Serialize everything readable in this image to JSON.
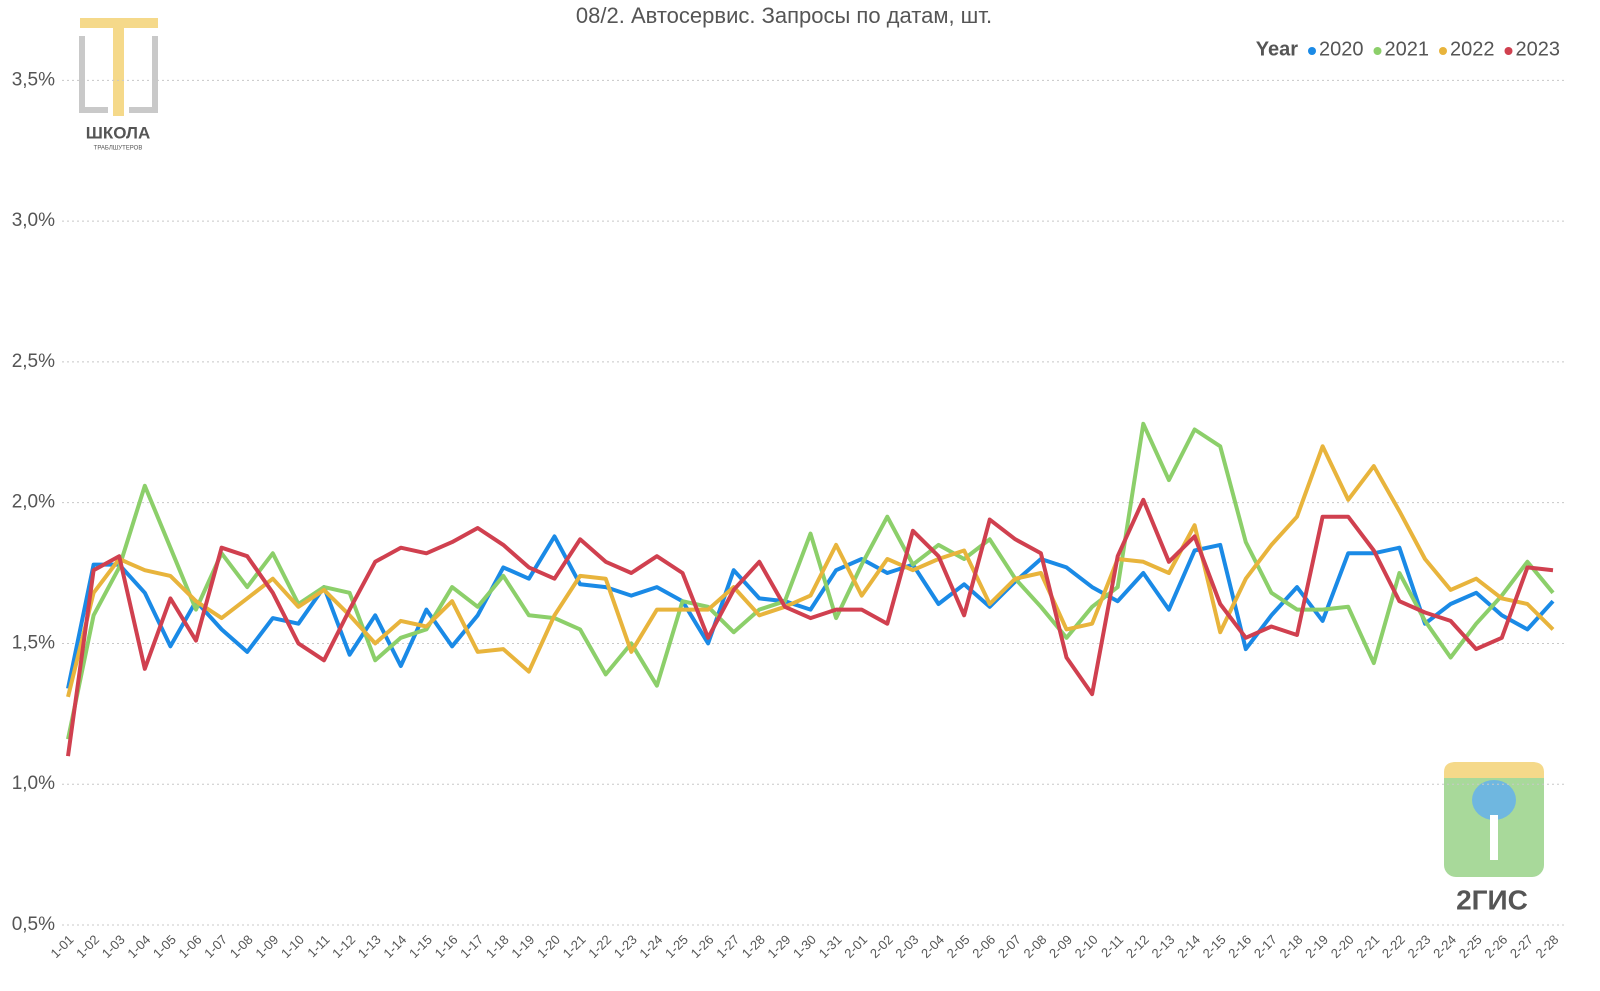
{
  "chart_data": {
    "type": "line",
    "title": "08/2. Автосервис. Запросы по датам, шт.",
    "legend_title": "Year",
    "legend_position": "top-right",
    "grid": true,
    "categories": [
      "1-01",
      "1-02",
      "1-03",
      "1-04",
      "1-05",
      "1-06",
      "1-07",
      "1-08",
      "1-09",
      "1-10",
      "1-11",
      "1-12",
      "1-13",
      "1-14",
      "1-15",
      "1-16",
      "1-17",
      "1-18",
      "1-19",
      "1-20",
      "1-21",
      "1-22",
      "1-23",
      "1-24",
      "1-25",
      "1-26",
      "1-27",
      "1-28",
      "1-29",
      "1-30",
      "1-31",
      "2-01",
      "2-02",
      "2-03",
      "2-04",
      "2-05",
      "2-06",
      "2-07",
      "2-08",
      "2-09",
      "2-10",
      "2-11",
      "2-12",
      "2-13",
      "2-14",
      "2-15",
      "2-16",
      "2-17",
      "2-18",
      "2-19",
      "2-20",
      "2-21",
      "2-22",
      "2-23",
      "2-24",
      "2-25",
      "2-26",
      "2-27",
      "2-28"
    ],
    "ylim": [
      0.5,
      3.7
    ],
    "yticks": [
      {
        "value": 0.5,
        "label": "0,5%"
      },
      {
        "value": 1.0,
        "label": "1,0%"
      },
      {
        "value": 1.5,
        "label": "1,5%"
      },
      {
        "value": 2.0,
        "label": "2,0%"
      },
      {
        "value": 2.5,
        "label": "2,5%"
      },
      {
        "value": 3.0,
        "label": "3,0%"
      },
      {
        "value": 3.5,
        "label": "3,5%"
      }
    ],
    "series": [
      {
        "name": "2020",
        "color": "#1a8ae6",
        "values": [
          1.34,
          1.78,
          1.78,
          1.68,
          1.49,
          1.65,
          1.55,
          1.47,
          1.59,
          1.57,
          1.7,
          1.46,
          1.6,
          1.42,
          1.62,
          1.49,
          1.6,
          1.77,
          1.73,
          1.88,
          1.71,
          1.7,
          1.67,
          1.7,
          1.65,
          1.5,
          1.76,
          1.66,
          1.65,
          1.62,
          1.76,
          1.8,
          1.75,
          1.78,
          1.64,
          1.71,
          1.63,
          1.72,
          1.8,
          1.77,
          1.7,
          1.65,
          1.75,
          1.62,
          1.83,
          1.85,
          1.48,
          1.6,
          1.7,
          1.58,
          1.82,
          1.82,
          1.84,
          1.57,
          1.64,
          1.68,
          1.6,
          1.55,
          1.65
        ]
      },
      {
        "name": "2021",
        "color": "#8ccf6a",
        "values": [
          1.16,
          1.6,
          1.77,
          2.06,
          1.84,
          1.62,
          1.82,
          1.7,
          1.82,
          1.64,
          1.7,
          1.68,
          1.44,
          1.52,
          1.55,
          1.7,
          1.63,
          1.74,
          1.6,
          1.59,
          1.55,
          1.39,
          1.5,
          1.35,
          1.65,
          1.63,
          1.54,
          1.62,
          1.65,
          1.89,
          1.59,
          1.78,
          1.95,
          1.78,
          1.85,
          1.8,
          1.87,
          1.73,
          1.63,
          1.52,
          1.63,
          1.7,
          2.28,
          2.08,
          2.26,
          2.2,
          1.86,
          1.68,
          1.62,
          1.62,
          1.63,
          1.43,
          1.75,
          1.58,
          1.45,
          1.57,
          1.67,
          1.79,
          1.68
        ]
      },
      {
        "name": "2022",
        "color": "#e8b43c",
        "values": [
          1.31,
          1.68,
          1.8,
          1.76,
          1.74,
          1.65,
          1.59,
          1.66,
          1.73,
          1.63,
          1.69,
          1.6,
          1.5,
          1.58,
          1.56,
          1.65,
          1.47,
          1.48,
          1.4,
          1.6,
          1.74,
          1.73,
          1.47,
          1.62,
          1.62,
          1.62,
          1.7,
          1.6,
          1.63,
          1.67,
          1.85,
          1.67,
          1.8,
          1.76,
          1.8,
          1.83,
          1.64,
          1.73,
          1.75,
          1.55,
          1.57,
          1.8,
          1.79,
          1.75,
          1.92,
          1.54,
          1.73,
          1.85,
          1.95,
          2.2,
          2.01,
          2.13,
          1.97,
          1.8,
          1.69,
          1.73,
          1.66,
          1.64,
          1.55
        ]
      },
      {
        "name": "2023",
        "color": "#d0404f",
        "values": [
          1.1,
          1.76,
          1.81,
          1.41,
          1.66,
          1.51,
          1.84,
          1.81,
          1.68,
          1.5,
          1.44,
          1.62,
          1.79,
          1.84,
          1.82,
          1.86,
          1.91,
          1.85,
          1.77,
          1.73,
          1.87,
          1.79,
          1.75,
          1.81,
          1.75,
          1.52,
          1.69,
          1.79,
          1.63,
          1.59,
          1.62,
          1.62,
          1.57,
          1.9,
          1.81,
          1.6,
          1.94,
          1.87,
          1.82,
          1.45,
          1.32,
          1.81,
          2.01,
          1.79,
          1.88,
          1.64,
          1.52,
          1.56,
          1.53,
          1.95,
          1.95,
          1.83,
          1.65,
          1.61,
          1.58,
          1.48,
          1.52,
          1.77,
          1.76
        ]
      }
    ]
  },
  "logos": {
    "school_name": "ШКОЛА",
    "school_sub": "ТРАБЛШУТЕРОВ",
    "brand": "2ГИС"
  }
}
